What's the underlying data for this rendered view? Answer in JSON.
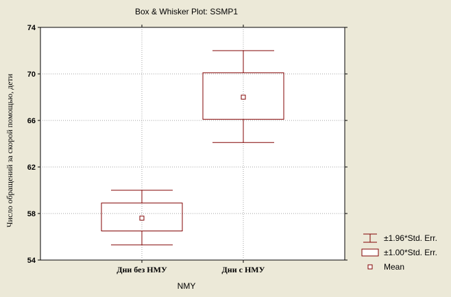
{
  "chart_data": {
    "type": "box",
    "title": "Box & Whisker Plot: SSMP1",
    "xlabel": "NMY",
    "ylabel": "Число обращений за  скорой помощью, дети",
    "ylim": [
      54,
      74
    ],
    "yticks": [
      "54",
      "58",
      "62",
      "66",
      "70",
      "74"
    ],
    "grid": true,
    "legend_position": "bottom-right",
    "categories": [
      "Дни  без  НМУ",
      "Дни  с  НМУ"
    ],
    "boxes": [
      {
        "category": "Дни  без  НМУ",
        "mean": 57.6,
        "box_low": 56.5,
        "box_high": 58.9,
        "whisker_low": 55.3,
        "whisker_high": 60.0
      },
      {
        "category": "Дни  с  НМУ",
        "mean": 68.0,
        "box_low": 66.1,
        "box_high": 70.1,
        "whisker_low": 64.1,
        "whisker_high": 72.0
      }
    ],
    "legend": [
      {
        "symbol": "whisker",
        "label": "±1.96*Std. Err."
      },
      {
        "symbol": "box",
        "label": "±1.00*Std. Err."
      },
      {
        "symbol": "point",
        "label": "Mean"
      }
    ],
    "colors": {
      "series": "#800000",
      "grid": "#a0a0a0",
      "plot_bg": "#ffffff",
      "page_bg": "#ece9d8"
    }
  }
}
